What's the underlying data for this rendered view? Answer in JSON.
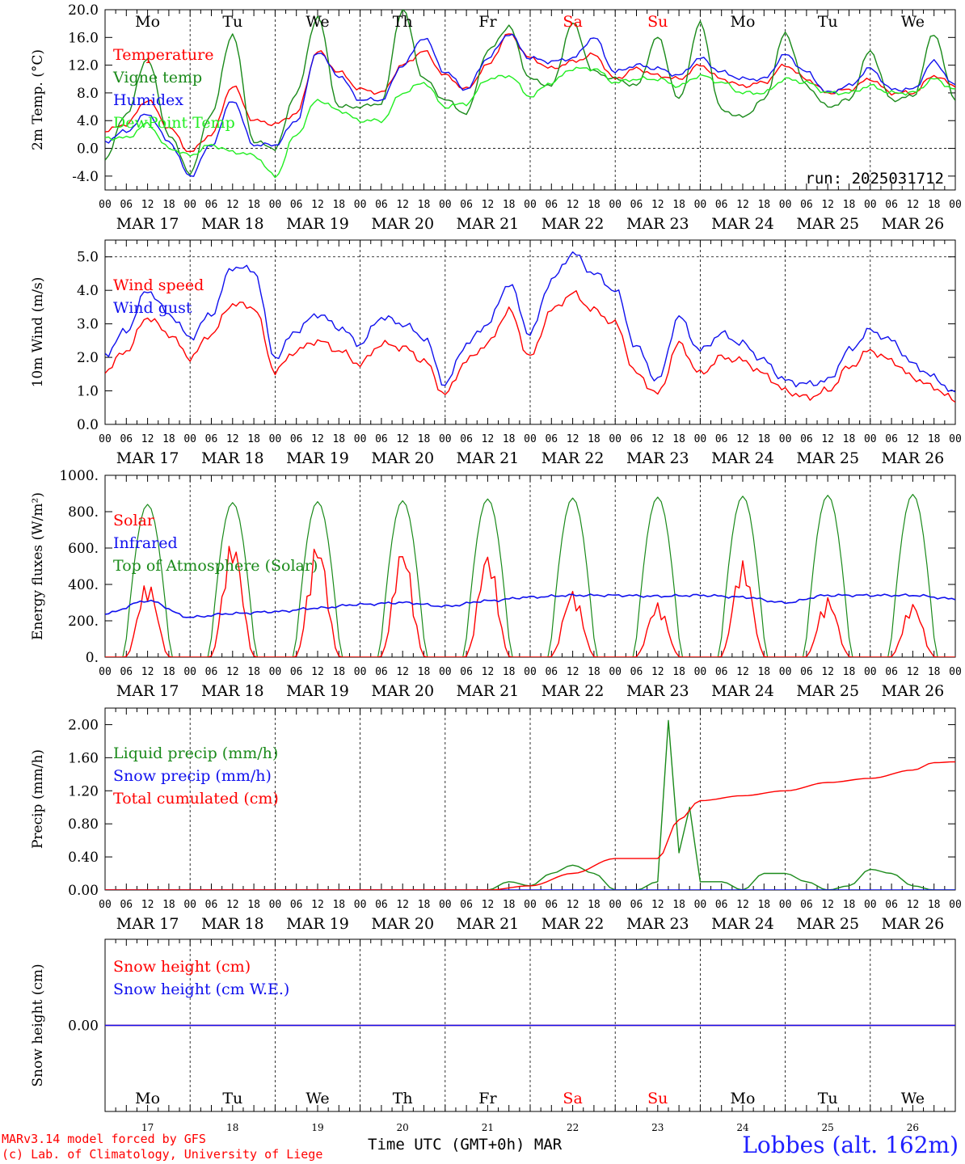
{
  "station": "Lobbes (alt. 162m)",
  "credits": [
    "MARv3.14 model forced by GFS",
    "(c) Lab. of Climatology, University of Liege"
  ],
  "xaxis_label": "Time UTC (GMT+0h)",
  "month": "MAR",
  "run_label": "run: 2025031712",
  "colors": {
    "red": "#ff0000",
    "blue": "#1010ee",
    "green": "#1a8a1a",
    "lightgreen": "#22ee22",
    "grid": "#000000"
  },
  "days": [
    {
      "date": "MAR 17",
      "dow": "Mo",
      "num": "17",
      "weekend": false
    },
    {
      "date": "MAR 18",
      "dow": "Tu",
      "num": "18",
      "weekend": false
    },
    {
      "date": "MAR 19",
      "dow": "We",
      "num": "19",
      "weekend": false
    },
    {
      "date": "MAR 20",
      "dow": "Th",
      "num": "20",
      "weekend": false
    },
    {
      "date": "MAR 21",
      "dow": "Fr",
      "num": "21",
      "weekend": false
    },
    {
      "date": "MAR 22",
      "dow": "Sa",
      "num": "22",
      "weekend": true
    },
    {
      "date": "MAR 23",
      "dow": "Su",
      "num": "23",
      "weekend": true
    },
    {
      "date": "MAR 24",
      "dow": "Mo",
      "num": "24",
      "weekend": false
    },
    {
      "date": "MAR 25",
      "dow": "Tu",
      "num": "25",
      "weekend": false
    },
    {
      "date": "MAR 26",
      "dow": "We",
      "num": "26",
      "weekend": false
    }
  ],
  "hour_ticks": [
    "00",
    "06",
    "12",
    "18"
  ],
  "end_tick": "00",
  "chart_data": [
    {
      "type": "line",
      "ylabel": "2m Temp. (°C)",
      "ylim": [
        -6,
        20
      ],
      "yticks": [
        -4,
        0,
        4,
        8,
        12,
        16,
        20
      ],
      "ytick_labels": [
        "-4.0",
        "0.0",
        "4.0",
        "8.0",
        "12.0",
        "16.0",
        "20.0"
      ],
      "dashed_y": [
        0
      ],
      "x_hours": [
        0,
        6,
        12,
        18,
        24,
        30,
        36,
        42,
        48,
        54,
        60,
        66,
        72,
        78,
        84,
        90,
        96,
        102,
        108,
        114,
        120,
        126,
        132,
        138,
        144,
        150,
        156,
        162,
        168,
        174,
        180,
        186,
        192,
        198,
        204,
        210,
        216,
        222,
        228,
        234,
        240
      ],
      "series": [
        {
          "name": "Temperature",
          "color": "red",
          "values": [
            2.5,
            3.5,
            7.0,
            3.0,
            -0.5,
            2.0,
            9.0,
            4.0,
            3.5,
            5.0,
            14.0,
            11.0,
            8.5,
            8.0,
            12.0,
            14.0,
            10.5,
            8.5,
            12.0,
            16.5,
            13.0,
            11.5,
            12.5,
            13.5,
            10.0,
            11.5,
            10.5,
            10.0,
            12.0,
            10.0,
            9.0,
            9.5,
            12.0,
            10.0,
            8.0,
            8.5,
            10.0,
            8.0,
            8.0,
            10.5,
            9.0
          ]
        },
        {
          "name": "Vigne temp",
          "color": "green",
          "values": [
            -1.5,
            5.0,
            13.0,
            2.0,
            -3.5,
            5.0,
            16.5,
            1.0,
            0.0,
            8.0,
            19.0,
            6.0,
            6.0,
            6.5,
            20.0,
            10.0,
            7.0,
            5.0,
            14.0,
            17.5,
            10.0,
            9.0,
            18.0,
            11.0,
            10.0,
            9.0,
            16.0,
            7.0,
            18.0,
            5.5,
            4.5,
            7.0,
            16.5,
            9.0,
            6.0,
            7.0,
            14.0,
            7.0,
            7.5,
            16.5,
            7.0
          ]
        },
        {
          "name": "Humidex",
          "color": "blue",
          "values": [
            1.0,
            2.5,
            5.0,
            1.0,
            -4.0,
            0.5,
            7.0,
            0.5,
            0.5,
            4.0,
            14.0,
            10.5,
            7.0,
            7.0,
            12.0,
            16.0,
            11.0,
            8.5,
            13.0,
            16.5,
            13.0,
            12.5,
            13.0,
            16.0,
            11.0,
            12.0,
            11.5,
            10.5,
            13.0,
            11.0,
            10.0,
            10.0,
            13.5,
            11.0,
            8.0,
            9.0,
            11.5,
            8.5,
            8.5,
            12.5,
            9.0
          ]
        },
        {
          "name": "DewPoint Temp",
          "color": "lightgreen",
          "values": [
            1.5,
            1.5,
            3.5,
            0.0,
            -1.0,
            0.5,
            -0.5,
            -1.0,
            -4.0,
            2.0,
            7.0,
            5.5,
            4.0,
            4.0,
            8.0,
            9.5,
            6.0,
            6.5,
            10.0,
            10.5,
            7.5,
            9.5,
            11.5,
            11.5,
            9.5,
            10.0,
            10.0,
            9.0,
            10.5,
            9.5,
            8.0,
            8.0,
            10.0,
            9.5,
            8.0,
            8.0,
            9.0,
            8.0,
            8.0,
            10.0,
            8.5
          ]
        }
      ],
      "legend_placement": "top-left"
    },
    {
      "type": "line",
      "ylabel": "10m Wind (m/s)",
      "ylim": [
        0,
        5.5
      ],
      "yticks": [
        0,
        1,
        2,
        3,
        4,
        5
      ],
      "ytick_labels": [
        "0.0",
        "1.0",
        "2.0",
        "3.0",
        "4.0",
        "5.0"
      ],
      "dashed_y": [
        5
      ],
      "x_hours": [
        0,
        6,
        12,
        18,
        24,
        30,
        36,
        42,
        48,
        54,
        60,
        66,
        72,
        78,
        84,
        90,
        96,
        102,
        108,
        114,
        120,
        126,
        132,
        138,
        144,
        150,
        156,
        162,
        168,
        174,
        180,
        186,
        192,
        198,
        204,
        210,
        216,
        222,
        228,
        234,
        240
      ],
      "series": [
        {
          "name": "Wind speed",
          "color": "red",
          "values": [
            1.6,
            2.2,
            3.2,
            2.7,
            2.0,
            2.7,
            3.6,
            3.5,
            1.6,
            2.2,
            2.5,
            2.2,
            1.8,
            2.4,
            2.3,
            1.9,
            0.9,
            1.9,
            2.4,
            3.4,
            2.0,
            3.4,
            3.9,
            3.4,
            3.0,
            1.5,
            0.9,
            2.4,
            1.5,
            2.0,
            1.9,
            1.5,
            1.0,
            0.8,
            1.0,
            1.7,
            2.2,
            1.9,
            1.4,
            1.1,
            0.7
          ]
        },
        {
          "name": "Wind gust",
          "color": "blue",
          "values": [
            2.1,
            2.8,
            4.0,
            3.3,
            2.6,
            3.3,
            4.7,
            4.6,
            2.0,
            2.8,
            3.3,
            2.9,
            2.4,
            3.2,
            3.0,
            2.6,
            1.2,
            2.4,
            3.0,
            4.2,
            2.7,
            4.3,
            5.1,
            4.5,
            4.0,
            2.3,
            1.3,
            3.2,
            2.2,
            2.7,
            2.4,
            1.9,
            1.3,
            1.2,
            1.3,
            2.2,
            2.8,
            2.5,
            1.8,
            1.4,
            0.9
          ]
        }
      ],
      "legend_placement": "top-left"
    },
    {
      "type": "line",
      "ylabel": "Energy fluxes (W/m²)",
      "ylim": [
        0,
        1000
      ],
      "yticks": [
        0,
        200,
        400,
        600,
        800,
        1000
      ],
      "ytick_labels": [
        "0.",
        "200.",
        "400.",
        "600.",
        "800.",
        "1000."
      ],
      "dashed_y": [],
      "toa_peaks": [
        840,
        850,
        855,
        860,
        870,
        875,
        880,
        885,
        890,
        895
      ],
      "solar_peaks": [
        420,
        650,
        640,
        610,
        580,
        370,
        300,
        530,
        330,
        300
      ],
      "series": [
        {
          "name": "Solar",
          "color": "red",
          "values": "daily peaks (solar_peaks)"
        },
        {
          "name": "Infrared",
          "color": "blue",
          "x_hours": [
            0,
            12,
            24,
            36,
            48,
            60,
            72,
            84,
            96,
            108,
            120,
            132,
            144,
            156,
            168,
            180,
            192,
            204,
            216,
            228,
            240
          ],
          "values": [
            240,
            310,
            220,
            240,
            250,
            270,
            290,
            300,
            280,
            310,
            330,
            340,
            340,
            335,
            340,
            330,
            300,
            340,
            340,
            340,
            320
          ]
        },
        {
          "name": "Top of Atmosphere (Solar)",
          "color": "green",
          "values": "daily peaks (toa_peaks)"
        }
      ],
      "legend_placement": "top-left"
    },
    {
      "type": "line",
      "ylabel": "Precip (mm/h)",
      "ylim": [
        0,
        2.2
      ],
      "yticks": [
        0,
        0.4,
        0.8,
        1.2,
        1.6,
        2.0
      ],
      "ytick_labels": [
        "0.00",
        "0.40",
        "0.80",
        "1.20",
        "1.60",
        "2.00"
      ],
      "dashed_y": [],
      "series": [
        {
          "name": "Liquid precip (mm/h)",
          "color": "green",
          "x_hours": [
            0,
            108,
            114,
            120,
            126,
            132,
            138,
            144,
            150,
            156,
            159,
            162,
            165,
            168,
            174,
            180,
            186,
            192,
            198,
            204,
            210,
            216,
            222,
            228,
            234,
            240
          ],
          "values": [
            0,
            0,
            0.1,
            0.05,
            0.2,
            0.3,
            0.2,
            0.0,
            0.0,
            0.1,
            2.05,
            0.45,
            1.0,
            0.1,
            0.1,
            0.0,
            0.2,
            0.2,
            0.1,
            0.0,
            0.05,
            0.25,
            0.2,
            0.05,
            0.0,
            0.0
          ]
        },
        {
          "name": "Snow precip (mm/h)",
          "color": "blue",
          "x_hours": [
            0,
            240
          ],
          "values": [
            0,
            0
          ]
        },
        {
          "name": "Total cumulated (cm)",
          "color": "red",
          "x_hours": [
            0,
            108,
            120,
            132,
            144,
            150,
            156,
            162,
            168,
            180,
            192,
            204,
            216,
            228,
            234,
            240
          ],
          "values": [
            0,
            0,
            0.05,
            0.2,
            0.38,
            0.38,
            0.38,
            0.85,
            1.08,
            1.14,
            1.2,
            1.3,
            1.35,
            1.45,
            1.54,
            1.55
          ]
        }
      ],
      "legend_placement": "top-left"
    },
    {
      "type": "line",
      "ylabel": "Snow height (cm)",
      "ylim": [
        -1,
        1
      ],
      "yticks": [
        0
      ],
      "ytick_labels": [
        "0.00"
      ],
      "dashed_y": [],
      "series": [
        {
          "name": "Snow height (cm)",
          "color": "red",
          "x_hours": [
            0,
            240
          ],
          "values": [
            0,
            0
          ]
        },
        {
          "name": "Snow height (cm W.E.)",
          "color": "blue",
          "x_hours": [
            0,
            240
          ],
          "values": [
            0,
            0
          ]
        }
      ],
      "legend_placement": "top-left"
    }
  ]
}
